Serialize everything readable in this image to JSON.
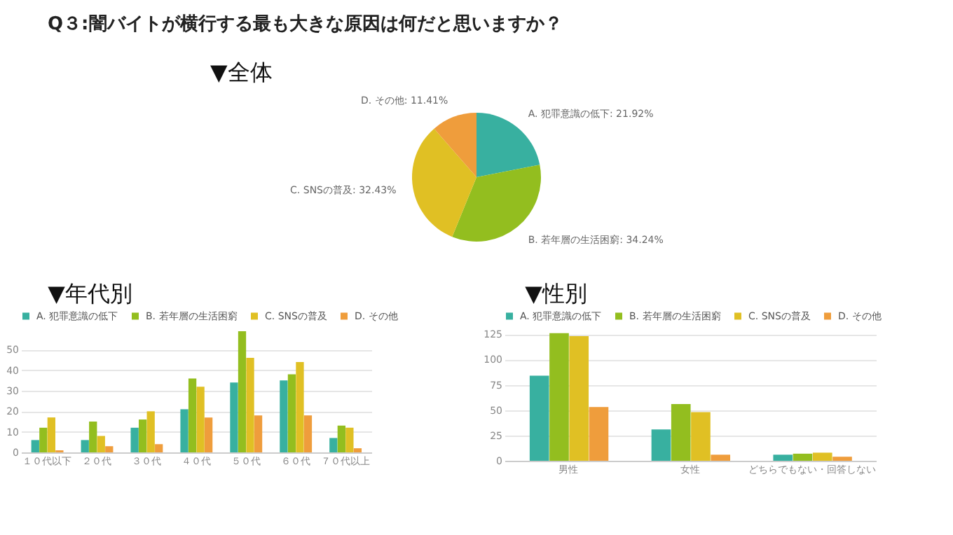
{
  "chart_data": [
    {
      "type": "pie",
      "title": "Q３:闇バイトが横行する最も大きな原因は何だと思いますか？",
      "subtitle": "▼全体",
      "categories": [
        "A. 犯罪意識の低下",
        "B. 若年層の生活困窮",
        "C. SNSの普及",
        "D. その他"
      ],
      "values": [
        21.92,
        34.24,
        32.43,
        11.41
      ],
      "value_labels": [
        "21.92%",
        "34.24%",
        "32.43%",
        "11.41%"
      ],
      "colors": [
        "#38b0a0",
        "#93be1f",
        "#e0c024",
        "#ef9d3c"
      ],
      "legend": false
    },
    {
      "type": "bar",
      "title": "▼年代別",
      "categories": [
        "１０代以下",
        "２０代",
        "３０代",
        "４０代",
        "５０代",
        "６０代",
        "７０代以上"
      ],
      "series": [
        {
          "name": "A. 犯罪意識の低下",
          "color": "#38b0a0",
          "values": [
            6,
            6,
            12,
            21,
            34,
            35,
            7
          ]
        },
        {
          "name": "B. 若年層の生活困窮",
          "color": "#93be1f",
          "values": [
            12,
            15,
            16,
            36,
            59,
            38,
            13
          ]
        },
        {
          "name": "C. SNSの普及",
          "color": "#e0c024",
          "values": [
            17,
            8,
            20,
            32,
            46,
            44,
            12
          ]
        },
        {
          "name": "D. その他",
          "color": "#ef9d3c",
          "values": [
            1,
            3,
            4,
            17,
            18,
            18,
            2
          ]
        }
      ],
      "ylim": [
        0,
        60
      ],
      "yticks": [
        0,
        10,
        20,
        30,
        40,
        50
      ],
      "grid": "y",
      "legend": "top left"
    },
    {
      "type": "bar",
      "title": "▼性別",
      "categories": [
        "男性",
        "女性",
        "どちらでもない・回答しない"
      ],
      "series": [
        {
          "name": "A. 犯罪意識の低下",
          "color": "#38b0a0",
          "values": [
            84,
            31,
            6
          ]
        },
        {
          "name": "B. 若年層の生活困窮",
          "color": "#93be1f",
          "values": [
            126,
            56,
            7
          ]
        },
        {
          "name": "C. SNSの普及",
          "color": "#e0c024",
          "values": [
            123,
            48,
            8
          ]
        },
        {
          "name": "D. その他",
          "color": "#ef9d3c",
          "values": [
            53,
            6,
            4
          ]
        }
      ],
      "ylim": [
        0,
        130
      ],
      "yticks": [
        0,
        25,
        50,
        75,
        100,
        125
      ],
      "grid": "y",
      "legend": "top left"
    }
  ]
}
